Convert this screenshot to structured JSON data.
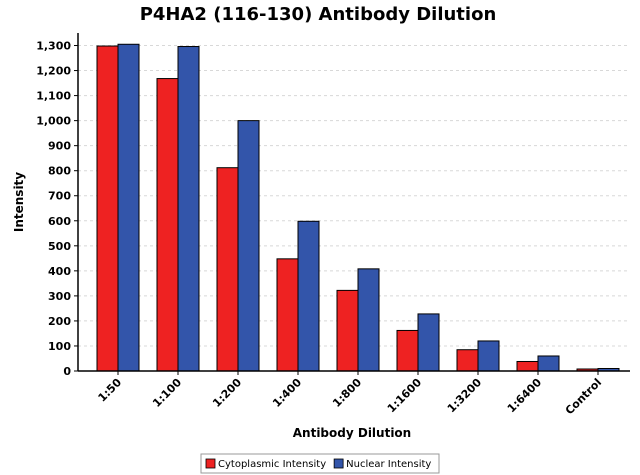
{
  "chart_data": {
    "type": "bar",
    "title": "P4HA2 (116-130) Antibody Dilution",
    "xlabel": "Antibody Dilution",
    "ylabel": "Intensity",
    "ylim": [
      0,
      1350
    ],
    "yticks": [
      0,
      100,
      200,
      300,
      400,
      500,
      600,
      700,
      800,
      900,
      1000,
      1100,
      1200,
      1300
    ],
    "ytick_labels": [
      "0",
      "100",
      "200",
      "300",
      "400",
      "500",
      "600",
      "700",
      "800",
      "900",
      "1,000",
      "1,100",
      "1,200",
      "1,300"
    ],
    "categories": [
      "1:50",
      "1:100",
      "1:200",
      "1:400",
      "1:800",
      "1:1600",
      "1:3200",
      "1:6400",
      "Control"
    ],
    "series": [
      {
        "name": "Cytoplasmic Intensity",
        "color": "#ee2222",
        "values": [
          1298,
          1168,
          812,
          448,
          322,
          162,
          85,
          38,
          8
        ]
      },
      {
        "name": "Nuclear Intensity",
        "color": "#3355aa",
        "values": [
          1305,
          1296,
          1000,
          598,
          408,
          228,
          120,
          60,
          10
        ]
      }
    ],
    "grid": true,
    "legend_position": "bottom-center"
  }
}
